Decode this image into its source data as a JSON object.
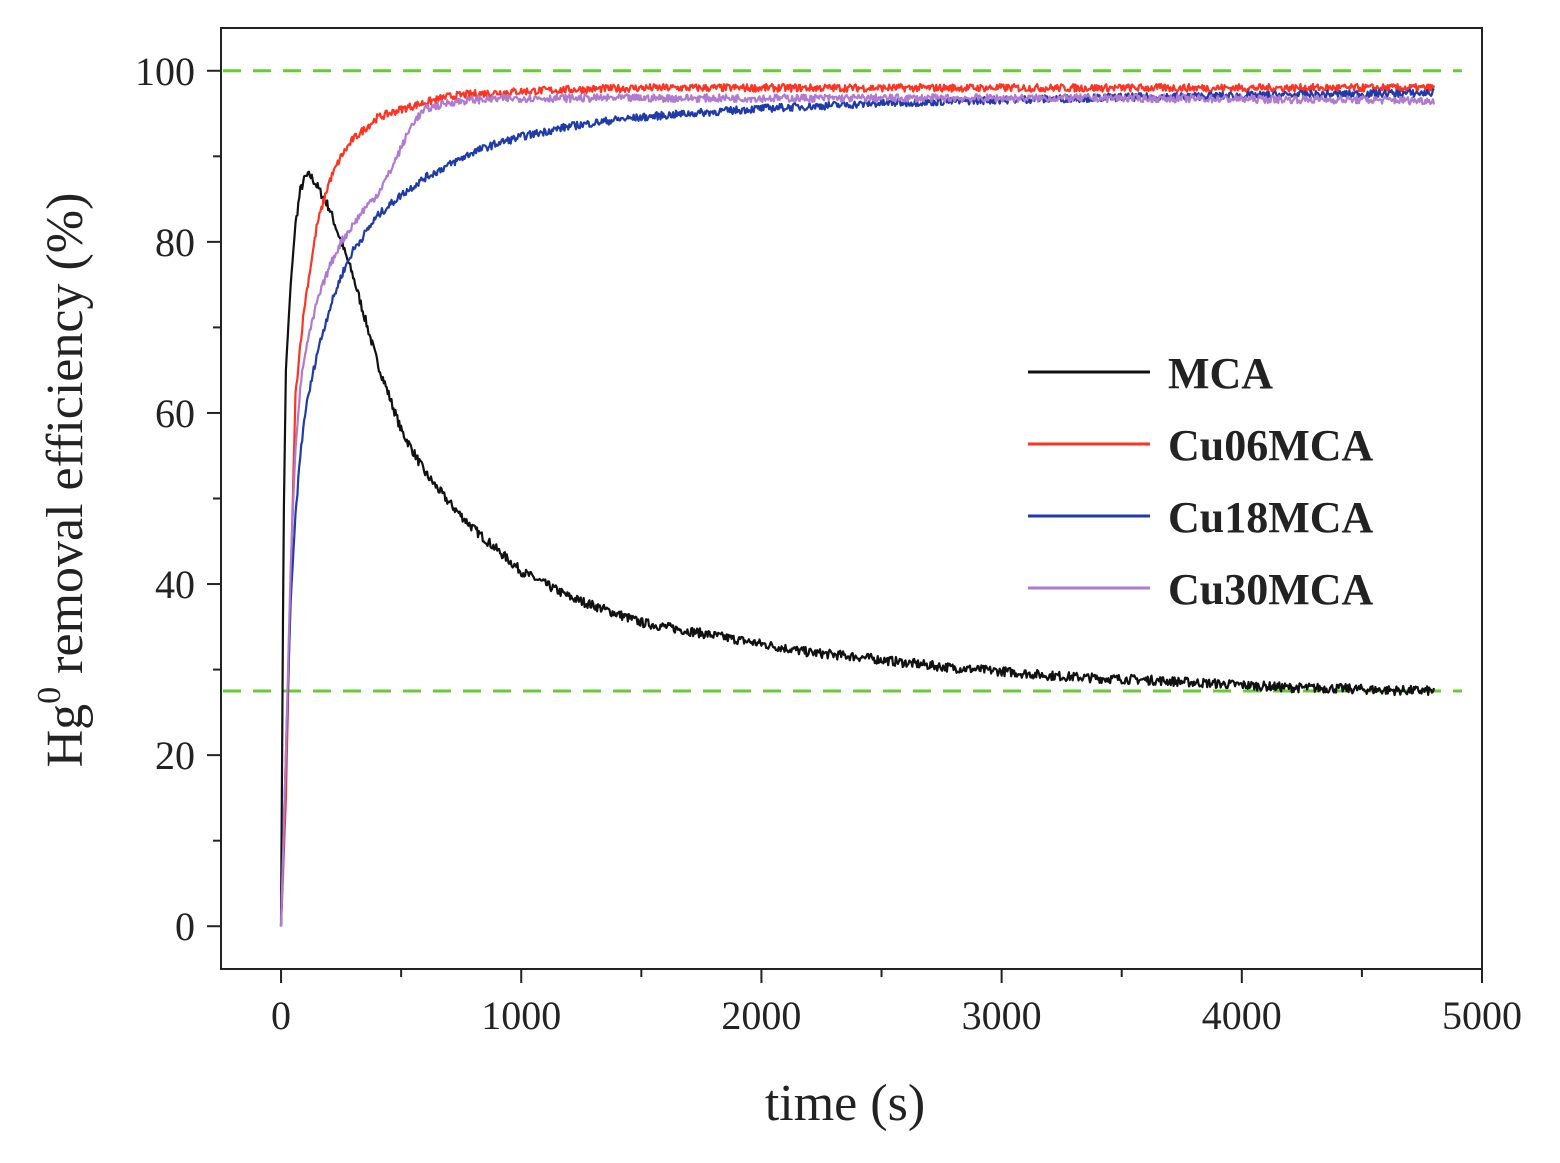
{
  "chart_data": {
    "type": "line",
    "title": "",
    "xlabel": "time (s)",
    "ylabel": {
      "prefix": "Hg",
      "superscript": "0",
      "suffix": " removal efficiency (%)"
    },
    "xlim": [
      -250,
      5000
    ],
    "ylim": [
      -5,
      105
    ],
    "xticks": [
      0,
      1000,
      2000,
      3000,
      4000,
      5000
    ],
    "xtick_labels": [
      "0",
      "1000",
      "2000",
      "3000",
      "4000",
      "5000"
    ],
    "yticks": [
      0,
      20,
      40,
      60,
      80,
      100
    ],
    "ytick_labels": [
      "0",
      "20",
      "40",
      "60",
      "80",
      "100"
    ],
    "grid": false,
    "legend_position": "center-right",
    "reference_lines": [
      {
        "name": "upper-reference",
        "y": 100,
        "color": "#66cc33",
        "style": "dashed"
      },
      {
        "name": "lower-reference",
        "y": 27.5,
        "color": "#66cc33",
        "style": "dashed"
      }
    ],
    "series": [
      {
        "name": "MCA",
        "color": "#111111",
        "x": [
          0,
          10,
          20,
          40,
          60,
          80,
          100,
          120,
          140,
          160,
          200,
          250,
          300,
          350,
          400,
          450,
          500,
          600,
          700,
          800,
          900,
          1000,
          1100,
          1200,
          1300,
          1400,
          1500,
          1600,
          1800,
          2000,
          2200,
          2400,
          2600,
          2800,
          3000,
          3200,
          3400,
          3600,
          3800,
          4000,
          4200,
          4400,
          4600,
          4800
        ],
        "y": [
          0,
          45,
          65,
          75,
          82,
          86,
          87.5,
          87.8,
          87,
          86,
          84,
          80,
          76,
          71,
          66,
          62,
          58,
          53,
          49.5,
          46.5,
          44,
          41.5,
          40,
          38.5,
          37.5,
          36.5,
          35.5,
          35,
          34,
          33,
          32,
          31.5,
          30.8,
          30.2,
          29.8,
          29.3,
          29,
          28.8,
          28.5,
          28.2,
          27.9,
          27.8,
          27.6,
          27.5
        ]
      },
      {
        "name": "Cu06MCA",
        "color": "#ff3322",
        "x": [
          0,
          20,
          40,
          60,
          80,
          100,
          150,
          200,
          250,
          300,
          400,
          500,
          600,
          700,
          800,
          1000,
          1200,
          1500,
          2000,
          2500,
          3000,
          3500,
          4000,
          4500,
          4800
        ],
        "y": [
          0,
          15,
          40,
          62,
          68,
          73,
          82,
          87,
          90,
          92,
          94.5,
          95.5,
          96.3,
          97,
          97.3,
          97.6,
          97.8,
          98,
          98,
          98,
          98,
          98,
          98,
          98,
          98
        ]
      },
      {
        "name": "Cu18MCA",
        "color": "#1f3aaa",
        "x": [
          0,
          20,
          40,
          60,
          80,
          100,
          150,
          200,
          250,
          300,
          400,
          500,
          600,
          700,
          800,
          900,
          1000,
          1200,
          1400,
          1600,
          1800,
          2000,
          2500,
          3000,
          3500,
          4000,
          4500,
          4800
        ],
        "y": [
          0,
          20,
          38,
          48,
          55,
          60,
          67,
          72,
          76,
          79,
          83,
          85.5,
          87.5,
          89,
          90.5,
          91.5,
          92.3,
          93.5,
          94.3,
          94.8,
          95.2,
          95.6,
          96.2,
          96.6,
          96.9,
          97.1,
          97.3,
          97.4
        ]
      },
      {
        "name": "Cu30MCA",
        "color": "#b07ad0",
        "x": [
          0,
          20,
          40,
          60,
          80,
          100,
          150,
          200,
          250,
          300,
          350,
          400,
          450,
          500,
          550,
          600,
          700,
          800,
          1000,
          1500,
          2000,
          2500,
          3000,
          3500,
          4000,
          4500,
          4800
        ],
        "y": [
          0,
          20,
          42,
          56,
          63,
          67,
          73,
          77,
          80,
          82,
          84,
          85.5,
          88,
          91,
          94,
          95.5,
          96.3,
          96.6,
          96.8,
          96.8,
          96.8,
          96.8,
          96.8,
          96.8,
          96.7,
          96.6,
          96.5
        ]
      }
    ]
  }
}
